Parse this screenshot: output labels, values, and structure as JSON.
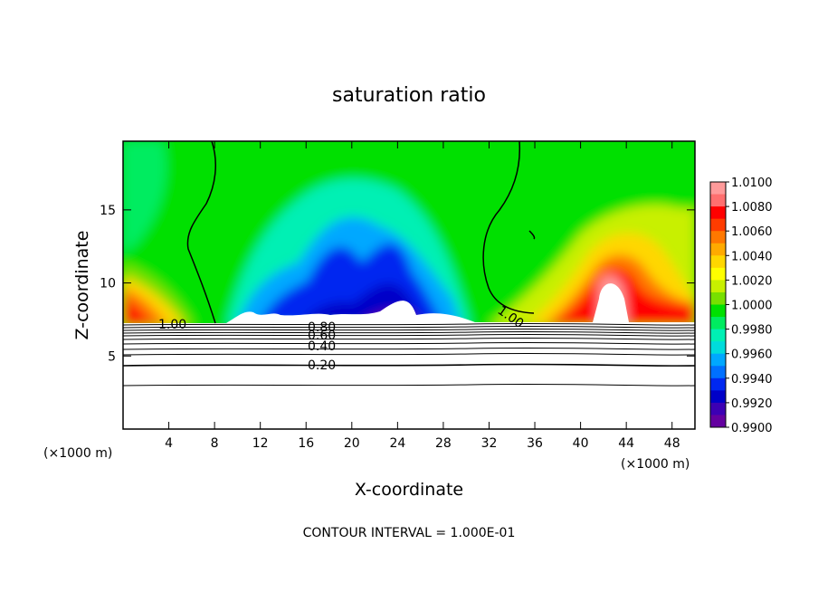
{
  "chart_data": {
    "type": "heatmap",
    "title": "saturation ratio",
    "xlabel": "X-coordinate",
    "ylabel": "Z-coordinate",
    "x_unit": "(×1000 m)",
    "x_unit_right": "(×1000 m)",
    "xlim": [
      0,
      50
    ],
    "ylim": [
      0,
      19.7
    ],
    "x_ticks": [
      4,
      8,
      12,
      16,
      20,
      24,
      28,
      32,
      36,
      40,
      44,
      48
    ],
    "y_ticks": [
      5,
      10,
      15
    ],
    "colorbar": {
      "min": 0.99,
      "max": 1.01,
      "labels": [
        "1.0100",
        "1.0080",
        "1.0060",
        "1.0040",
        "1.0020",
        "1.0000",
        "0.9980",
        "0.9960",
        "0.9940",
        "0.9920",
        "0.9900"
      ],
      "colors": [
        "#ff9a9a",
        "#ff6f6f",
        "#ff0000",
        "#ff3c00",
        "#ff7800",
        "#ffaa00",
        "#ffd700",
        "#ffff00",
        "#c8f000",
        "#78e000",
        "#00e000",
        "#00ec60",
        "#00f0b4",
        "#00dcdc",
        "#00a8ff",
        "#0070ff",
        "#0028f0",
        "#0000c8",
        "#3c00b4",
        "#6400a0"
      ]
    },
    "contour_labels": [
      "1.00",
      "1.00",
      "0.80",
      "0.60",
      "0.40",
      "0.20"
    ],
    "footer": "CONTOUR INTERVAL = 1.000E-01"
  }
}
